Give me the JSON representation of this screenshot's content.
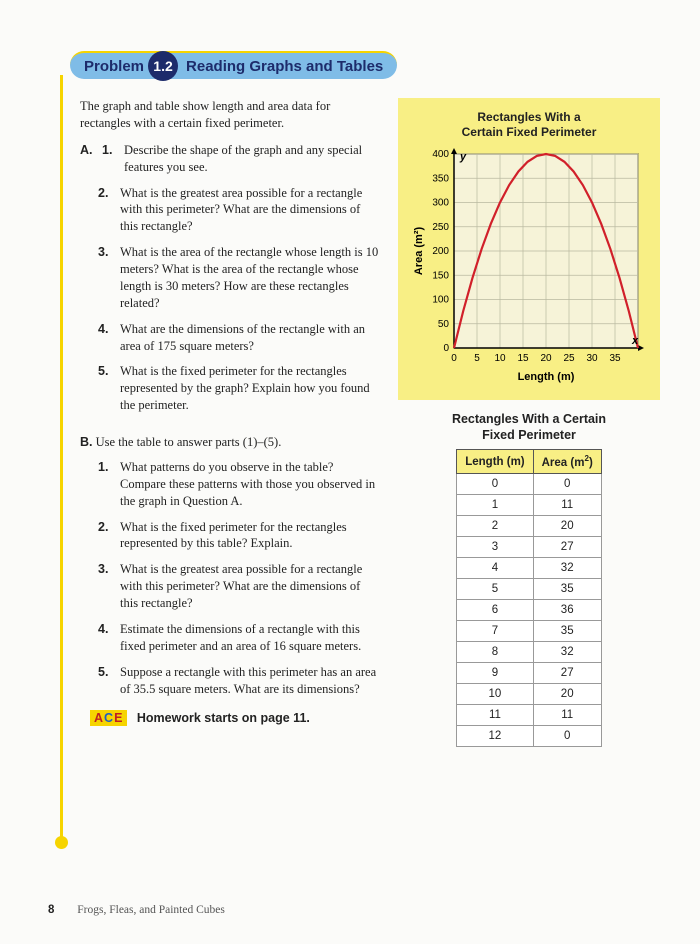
{
  "header": {
    "problem_word": "Problem",
    "number": "1.2",
    "title": "Reading Graphs and Tables"
  },
  "intro": "The graph and table show length and area data for rectangles with a certain fixed perimeter.",
  "sectionA": {
    "label": "A.",
    "first_num": "1.",
    "first_text": "Describe the shape of the graph and any special features you see.",
    "items": [
      {
        "num": "2.",
        "text": "What is the greatest area possible for a rectangle with this perimeter? What are the dimensions of this rectangle?"
      },
      {
        "num": "3.",
        "text": "What is the area of the rectangle whose length is 10 meters? What is the area of the rectangle whose length is 30 meters? How are these rectangles related?"
      },
      {
        "num": "4.",
        "text": "What are the dimensions of the rectangle with an area of 175 square meters?"
      },
      {
        "num": "5.",
        "text": "What is the fixed perimeter for the rectangles represented by the graph? Explain how you found the perimeter."
      }
    ]
  },
  "sectionB": {
    "label": "B.",
    "intro": "Use the table to answer parts (1)–(5).",
    "items": [
      {
        "num": "1.",
        "text": "What patterns do you observe in the table? Compare these patterns with those you observed in the graph in Question A."
      },
      {
        "num": "2.",
        "text": "What is the fixed perimeter for the rectangles represented by this table? Explain."
      },
      {
        "num": "3.",
        "text": "What is the greatest area possible for a rectangle with this perimeter? What are the dimensions of this rectangle?"
      },
      {
        "num": "4.",
        "text": "Estimate the dimensions of a rectangle with this fixed perimeter and an area of 16 square meters."
      },
      {
        "num": "5.",
        "text": "Suppose a rectangle with this perimeter has an area of 35.5 square meters. What are its dimensions?"
      }
    ]
  },
  "chart": {
    "title_line1": "Rectangles With a",
    "title_line2": "Certain Fixed Perimeter",
    "ylabel": "Area (m²)",
    "xlabel": "Length (m)",
    "y_axis_letter": "y",
    "x_axis_letter": "x",
    "xlim": [
      0,
      40
    ],
    "ylim": [
      0,
      400
    ],
    "xticks": [
      0,
      5,
      10,
      15,
      20,
      25,
      30,
      35
    ],
    "yticks": [
      0,
      50,
      100,
      150,
      200,
      250,
      300,
      350,
      400
    ],
    "grid_color": "#b9b9a0",
    "axis_color": "#000000",
    "curve_color": "#d1202a",
    "plot_bg": "#f6f3d8",
    "curve_width": 2.2,
    "curve_points": [
      [
        0,
        0
      ],
      [
        2,
        76
      ],
      [
        4,
        144
      ],
      [
        6,
        204
      ],
      [
        8,
        256
      ],
      [
        10,
        300
      ],
      [
        12,
        336
      ],
      [
        14,
        364
      ],
      [
        16,
        384
      ],
      [
        18,
        396
      ],
      [
        20,
        400
      ],
      [
        22,
        396
      ],
      [
        24,
        384
      ],
      [
        26,
        364
      ],
      [
        28,
        336
      ],
      [
        30,
        300
      ],
      [
        32,
        256
      ],
      [
        34,
        204
      ],
      [
        36,
        144
      ],
      [
        38,
        76
      ],
      [
        40,
        0
      ]
    ]
  },
  "table": {
    "title_line1": "Rectangles With a Certain",
    "title_line2": "Fixed Perimeter",
    "col1": "Length (m)",
    "col2": "Area (m²)",
    "rows": [
      [
        "0",
        "0"
      ],
      [
        "1",
        "11"
      ],
      [
        "2",
        "20"
      ],
      [
        "3",
        "27"
      ],
      [
        "4",
        "32"
      ],
      [
        "5",
        "35"
      ],
      [
        "6",
        "36"
      ],
      [
        "7",
        "35"
      ],
      [
        "8",
        "32"
      ],
      [
        "9",
        "27"
      ],
      [
        "10",
        "20"
      ],
      [
        "11",
        "11"
      ],
      [
        "12",
        "0"
      ]
    ]
  },
  "ace": {
    "a": "A",
    "c": "C",
    "e": "E",
    "text": "Homework starts on page 11."
  },
  "footer": {
    "page": "8",
    "title": "Frogs, Fleas, and Painted Cubes"
  }
}
